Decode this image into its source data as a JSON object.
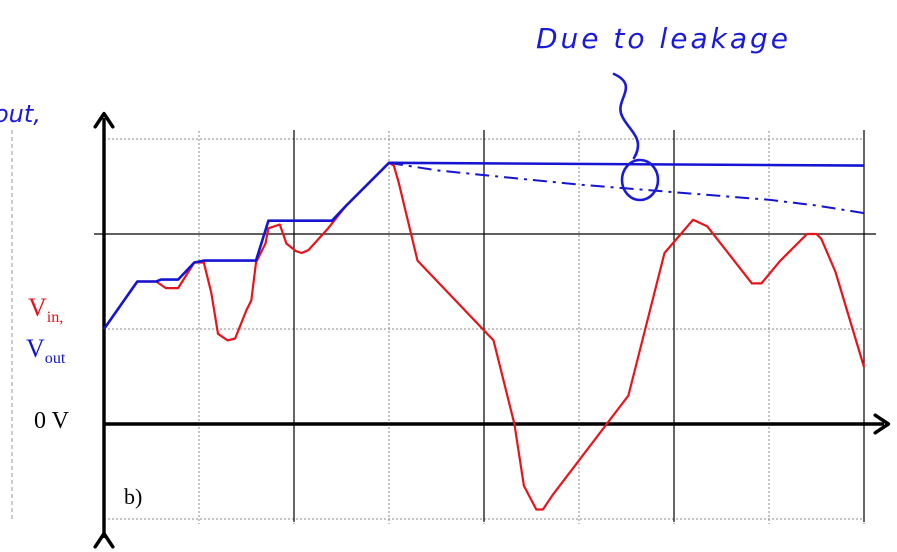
{
  "labels": {
    "vin_main": "V",
    "vin_sub": "in,",
    "vout_main": "V",
    "vout_sub": "out",
    "zero_v": "0 V",
    "panel": "b)",
    "annotation": "Due to leakage",
    "edge_label": "out,"
  },
  "colors": {
    "vin": "#e8141a",
    "vout": "#1414d2",
    "axis": "#000000",
    "grid": "#8a8a8a",
    "dashed_guide": "#9a9a9a",
    "annotation": "#1a1adb"
  },
  "chart_data": {
    "type": "line",
    "x_ticks": [
      0,
      1,
      2,
      3,
      4,
      5,
      6,
      7,
      8
    ],
    "y_ticks": [
      -1,
      0,
      1,
      2,
      3
    ],
    "xlim": [
      0,
      8
    ],
    "ylim": [
      -1,
      3
    ],
    "grid": true,
    "series": [
      {
        "name": "Vin",
        "points": [
          [
            0,
            1
          ],
          [
            0.35,
            1.5
          ],
          [
            0.55,
            1.5
          ],
          [
            0.65,
            1.43
          ],
          [
            0.78,
            1.43
          ],
          [
            0.95,
            1.7
          ],
          [
            1.05,
            1.7
          ],
          [
            1.13,
            1.38
          ],
          [
            1.2,
            0.95
          ],
          [
            1.3,
            0.88
          ],
          [
            1.38,
            0.9
          ],
          [
            1.5,
            1.2
          ],
          [
            1.55,
            1.3
          ],
          [
            1.6,
            1.7
          ],
          [
            1.7,
            1.9
          ],
          [
            1.73,
            2.06
          ],
          [
            1.85,
            2.1
          ],
          [
            1.92,
            1.9
          ],
          [
            2.02,
            1.82
          ],
          [
            2.08,
            1.8
          ],
          [
            2.15,
            1.83
          ],
          [
            2.35,
            2.05
          ],
          [
            2.55,
            2.3
          ],
          [
            3.0,
            2.75
          ],
          [
            3.05,
            2.72
          ],
          [
            3.1,
            2.55
          ],
          [
            3.3,
            1.72
          ],
          [
            4.1,
            0.88
          ],
          [
            4.32,
            0.0
          ],
          [
            4.42,
            -0.65
          ],
          [
            4.55,
            -0.9
          ],
          [
            4.62,
            -0.9
          ],
          [
            4.72,
            -0.75
          ],
          [
            5.52,
            0.3
          ],
          [
            5.9,
            1.8
          ],
          [
            6.2,
            2.15
          ],
          [
            6.35,
            2.08
          ],
          [
            6.82,
            1.48
          ],
          [
            6.92,
            1.48
          ],
          [
            7.12,
            1.72
          ],
          [
            7.4,
            2.0
          ],
          [
            7.5,
            2.0
          ],
          [
            7.55,
            1.95
          ],
          [
            7.7,
            1.6
          ],
          [
            8.0,
            0.6
          ]
        ]
      },
      {
        "name": "Vout",
        "points": [
          [
            0,
            1
          ],
          [
            0.35,
            1.5
          ],
          [
            0.55,
            1.5
          ],
          [
            0.6,
            1.52
          ],
          [
            0.78,
            1.52
          ],
          [
            0.95,
            1.7
          ],
          [
            1.05,
            1.72
          ],
          [
            1.6,
            1.72
          ],
          [
            1.73,
            2.14
          ],
          [
            2.4,
            2.14
          ],
          [
            2.55,
            2.3
          ],
          [
            3.0,
            2.75
          ],
          [
            8.0,
            2.72
          ]
        ]
      },
      {
        "name": "Vout (leakage)",
        "points": [
          [
            3.0,
            2.75
          ],
          [
            3.5,
            2.67
          ],
          [
            4.0,
            2.62
          ],
          [
            4.5,
            2.57
          ],
          [
            5.0,
            2.52
          ],
          [
            5.5,
            2.48
          ],
          [
            6.0,
            2.44
          ],
          [
            6.5,
            2.4
          ],
          [
            7.0,
            2.36
          ],
          [
            7.5,
            2.3
          ],
          [
            8.0,
            2.22
          ]
        ]
      }
    ]
  }
}
